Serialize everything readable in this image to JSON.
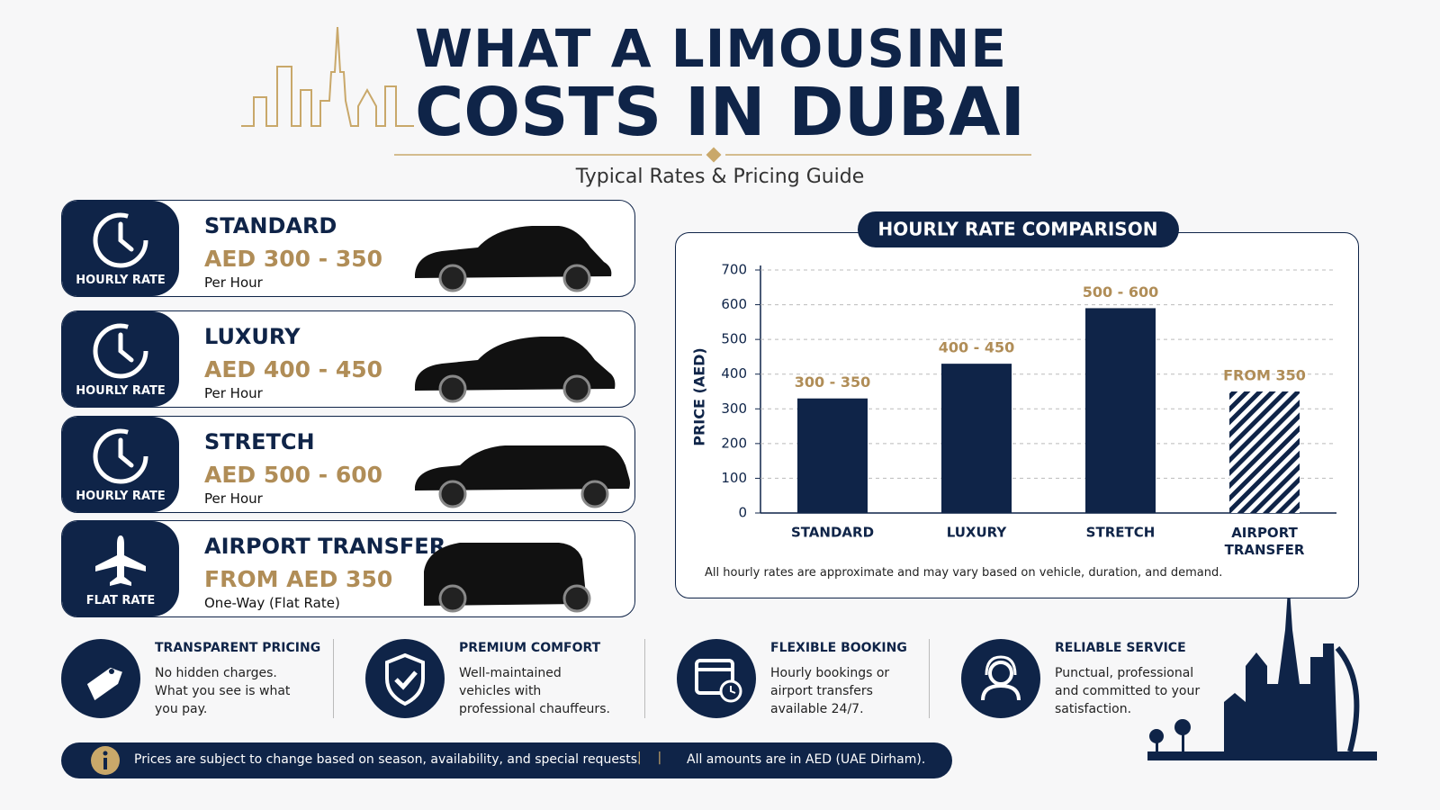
{
  "header": {
    "title_line1": "WHAT A LIMOUSINE",
    "title_line2": "COSTS IN DUBAI",
    "subtitle": "Typical Rates & Pricing Guide"
  },
  "rates": [
    {
      "badge": "HOURLY RATE",
      "name": "STANDARD",
      "price": "AED 300 - 350",
      "unit": "Per Hour"
    },
    {
      "badge": "HOURLY RATE",
      "name": "LUXURY",
      "price": "AED 400 - 450",
      "unit": "Per Hour"
    },
    {
      "badge": "HOURLY RATE",
      "name": "STRETCH",
      "price": "AED 500 - 600",
      "unit": "Per Hour"
    },
    {
      "badge": "FLAT RATE",
      "name": "AIRPORT TRANSFER",
      "price": "FROM AED 350",
      "unit": "One-Way (Flat Rate)"
    }
  ],
  "chart_data": {
    "type": "bar",
    "title": "HOURLY RATE COMPARISON",
    "y_label": "PRICE (AED)",
    "categories": [
      "STANDARD",
      "LUXURY",
      "STRETCH",
      "AIRPORT TRANSFER"
    ],
    "values": [
      330,
      430,
      590,
      350
    ],
    "value_labels": [
      "300 - 350",
      "400 - 450",
      "500 - 600",
      "FROM 350"
    ],
    "bar_styles": [
      "solid",
      "solid",
      "solid",
      "hatched"
    ],
    "color": "#0f2448",
    "label_color": "#b08d57",
    "ylim": [
      0,
      700
    ],
    "yticks": [
      0,
      100,
      200,
      300,
      400,
      500,
      600,
      700
    ],
    "grid": true,
    "note": "All hourly rates are approximate and may vary based on vehicle, duration, and demand."
  },
  "features": [
    {
      "title": "TRANSPARENT PRICING",
      "text": "No hidden charges. What you see is what you pay."
    },
    {
      "title": "PREMIUM COMFORT",
      "text": "Well-maintained vehicles with professional chauffeurs."
    },
    {
      "title": "FLEXIBLE BOOKING",
      "text": "Hourly bookings or airport transfers available 24/7."
    },
    {
      "title": "RELIABLE SERVICE",
      "text": "Punctual, professional and committed to your satisfaction."
    }
  ],
  "footer": {
    "note1": "Prices are subject to change based on season, availability, and special requests.",
    "note2": "All amounts are in AED (UAE Dirham)."
  }
}
